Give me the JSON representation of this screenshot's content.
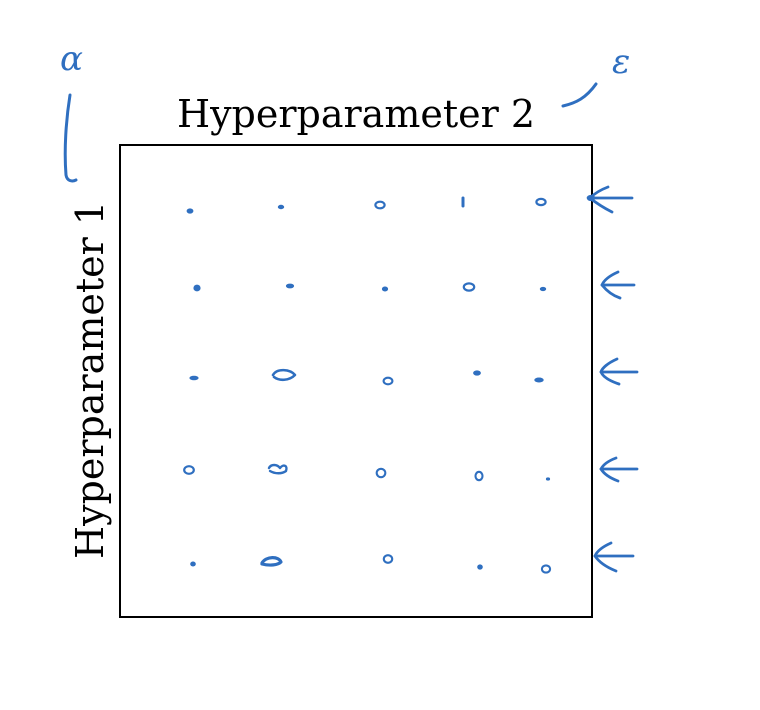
{
  "diagram": {
    "top_label": "Hyperparameter 2",
    "left_label": "Hyperparameter 1",
    "annotation_top_left": "α",
    "annotation_top_right": "ε",
    "ink_color": "#2f6fc0",
    "frame_color": "#000000",
    "grid": {
      "rows": 5,
      "columns": 5
    },
    "row_arrows": 5
  }
}
